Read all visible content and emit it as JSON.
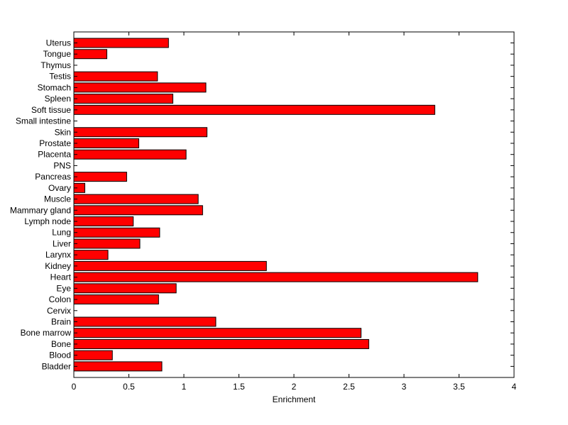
{
  "chart_data": {
    "type": "bar",
    "orientation": "horizontal",
    "xlabel": "Enrichment",
    "ylabel": "",
    "title": "",
    "xlim": [
      0,
      4
    ],
    "x_ticks": [
      "0",
      "0.5",
      "1",
      "1.5",
      "2",
      "2.5",
      "3",
      "3.5",
      "4"
    ],
    "grid": false,
    "bar_color": "#ff0000",
    "categories": [
      "Uterus",
      "Tongue",
      "Thymus",
      "Testis",
      "Stomach",
      "Spleen",
      "Soft tissue",
      "Small intestine",
      "Skin",
      "Prostate",
      "Placenta",
      "PNS",
      "Pancreas",
      "Ovary",
      "Muscle",
      "Mammary gland",
      "Lymph node",
      "Lung",
      "Liver",
      "Larynx",
      "Kidney",
      "Heart",
      "Eye",
      "Colon",
      "Cervix",
      "Brain",
      "Bone marrow",
      "Bone",
      "Blood",
      "Bladder"
    ],
    "values": [
      0.86,
      0.3,
      0,
      0.76,
      1.2,
      0.9,
      3.28,
      0,
      1.21,
      0.59,
      1.02,
      0,
      0.48,
      0.1,
      1.13,
      1.17,
      0.54,
      0.78,
      0.6,
      0.31,
      1.75,
      3.67,
      0.93,
      0.77,
      0,
      1.29,
      2.61,
      2.68,
      0.35,
      0.8
    ]
  }
}
